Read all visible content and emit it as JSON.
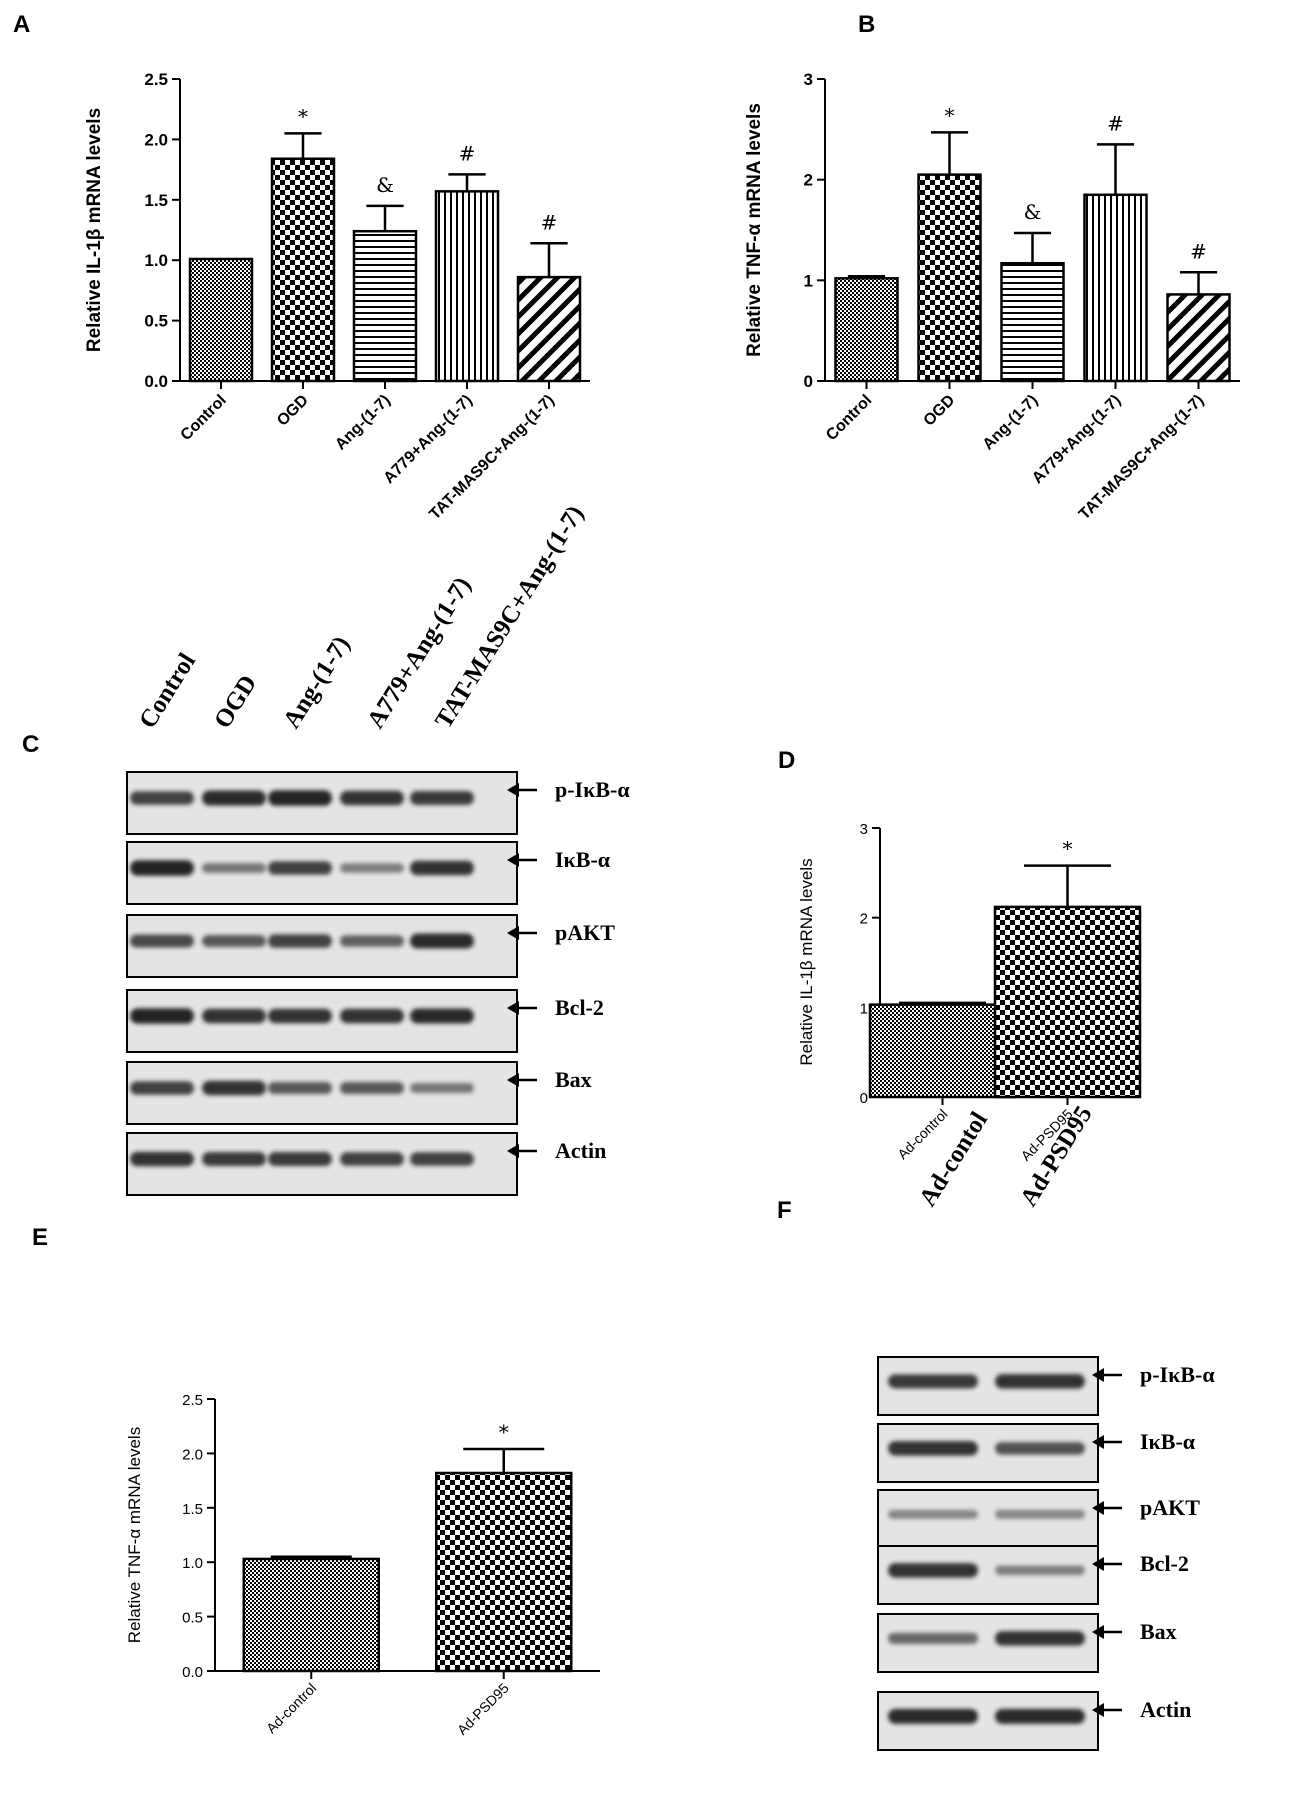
{
  "colors": {
    "ink": "#000000",
    "band": "#1e1e1e",
    "paper": "#ffffff",
    "blot_bg": "#e4e4e4"
  },
  "chart_data": [
    {
      "panel": "A",
      "type": "bar",
      "ylabel": "Relative IL-1β mRNA levels",
      "ylim": [
        0,
        2.5
      ],
      "yticks": [
        "0.0",
        "0.5",
        "1.0",
        "1.5",
        "2.0",
        "2.5"
      ],
      "categories": [
        "Control",
        "OGD",
        "Ang-(1-7)",
        "A779+Ang-(1-7)",
        "TAT-MAS9C+Ang-(1-7)"
      ],
      "values": [
        1.01,
        1.84,
        1.24,
        1.57,
        0.86
      ],
      "errors": [
        0.0,
        0.21,
        0.21,
        0.14,
        0.28
      ],
      "annotations": [
        "",
        "*",
        "&",
        "#",
        "#"
      ],
      "patterns": [
        "fine-check",
        "check",
        "horizontal",
        "vertical",
        "diagonal"
      ]
    },
    {
      "panel": "B",
      "type": "bar",
      "ylabel": "Relative TNF-α mRNA levels",
      "ylim": [
        0,
        3
      ],
      "yticks": [
        "0",
        "1",
        "2",
        "3"
      ],
      "categories": [
        "Control",
        "OGD",
        "Ang-(1-7)",
        "A779+Ang-(1-7)",
        "TAT-MAS9C+Ang-(1-7)"
      ],
      "values": [
        1.02,
        2.05,
        1.17,
        1.85,
        0.86
      ],
      "errors": [
        0.02,
        0.42,
        0.3,
        0.5,
        0.22
      ],
      "annotations": [
        "",
        "*",
        "&",
        "#",
        "#"
      ],
      "patterns": [
        "fine-check",
        "check",
        "horizontal",
        "vertical",
        "diagonal"
      ]
    },
    {
      "panel": "D",
      "type": "bar",
      "ylabel": "Relative IL-1β mRNA levels",
      "ylim": [
        0,
        3
      ],
      "yticks": [
        "0",
        "1",
        "2",
        "3"
      ],
      "categories": [
        "Ad-control",
        "Ad-PSD95"
      ],
      "values": [
        1.03,
        2.12
      ],
      "errors": [
        0.02,
        0.46
      ],
      "annotations": [
        "",
        "*"
      ],
      "patterns": [
        "fine-check",
        "check"
      ]
    },
    {
      "panel": "E",
      "type": "bar",
      "ylabel": "Relative TNF-α mRNA levels",
      "ylim": [
        0,
        2.5
      ],
      "yticks": [
        "0.0",
        "0.5",
        "1.0",
        "1.5",
        "2.0",
        "2.5"
      ],
      "categories": [
        "Ad-control",
        "Ad-PSD95"
      ],
      "values": [
        1.03,
        1.82
      ],
      "errors": [
        0.02,
        0.22
      ],
      "annotations": [
        "",
        "*"
      ],
      "patterns": [
        "fine-check",
        "check"
      ]
    }
  ],
  "blots": [
    {
      "panel": "C",
      "columns": [
        "Control",
        "OGD",
        "Ang-(1-7)",
        "A779+Ang-(1-7)",
        "TAT-MAS9C+Ang-(1-7)"
      ],
      "rows": [
        {
          "label": "p-IκB-α",
          "intensity": [
            0.75,
            0.9,
            0.95,
            0.85,
            0.8
          ]
        },
        {
          "label": "IκB-α",
          "intensity": [
            0.95,
            0.4,
            0.75,
            0.35,
            0.85
          ]
        },
        {
          "label": "pAKT",
          "intensity": [
            0.7,
            0.6,
            0.75,
            0.55,
            0.9
          ]
        },
        {
          "label": "Bcl-2",
          "intensity": [
            0.95,
            0.85,
            0.85,
            0.85,
            0.9
          ]
        },
        {
          "label": "Bax",
          "intensity": [
            0.75,
            0.85,
            0.6,
            0.6,
            0.4
          ]
        },
        {
          "label": "Actin",
          "intensity": [
            0.85,
            0.8,
            0.8,
            0.75,
            0.75
          ]
        }
      ]
    },
    {
      "panel": "F",
      "columns": [
        "Ad-contol",
        "Ad-PSD95"
      ],
      "rows": [
        {
          "label": "p-IκB-α",
          "intensity": [
            0.8,
            0.85
          ]
        },
        {
          "label": "IκB-α",
          "intensity": [
            0.85,
            0.65
          ]
        },
        {
          "label": "pAKT",
          "intensity": [
            0.3,
            0.3
          ]
        },
        {
          "label": "Bcl-2",
          "intensity": [
            0.85,
            0.35
          ]
        },
        {
          "label": "Bax",
          "intensity": [
            0.5,
            0.85
          ]
        },
        {
          "label": "Actin",
          "intensity": [
            0.9,
            0.9
          ]
        }
      ]
    }
  ]
}
